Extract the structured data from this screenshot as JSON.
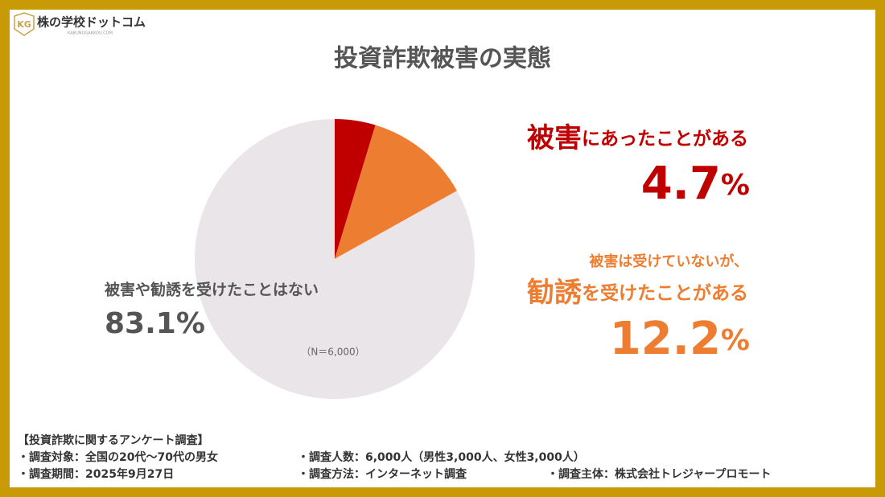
{
  "logo": {
    "name": "株の学校ドットコム",
    "url": "KABUNOGAKKOU.COM"
  },
  "chart_data": {
    "type": "pie",
    "title": "投資詐欺被害の実態",
    "categories": [
      "被害にあったことがある",
      "被害は受けていないが、勧誘を受けたことがある",
      "被害や勧誘を受けたことはない"
    ],
    "values": [
      4.7,
      12.2,
      83.1
    ],
    "value_labels": [
      "4.7%",
      "12.2%",
      "83.1%"
    ],
    "colors": [
      "#c00000",
      "#ed7d31",
      "#e9e5e9"
    ],
    "label_colors": [
      "#c00000",
      "#ed7d31",
      "#555555"
    ],
    "annotation": "（N＝6,000）"
  },
  "footer": {
    "title": "【投資詐欺に関するアンケート調査】",
    "items": [
      "・調査対象：全国の20代～70代の男女",
      "・調査人数：6,000人（男性3,000人、女性3,000人）",
      "・調査期間：2025年9月27日",
      "・調査方法：インターネット調査",
      "・調査主体：株式会社トレジャープロモート"
    ]
  }
}
